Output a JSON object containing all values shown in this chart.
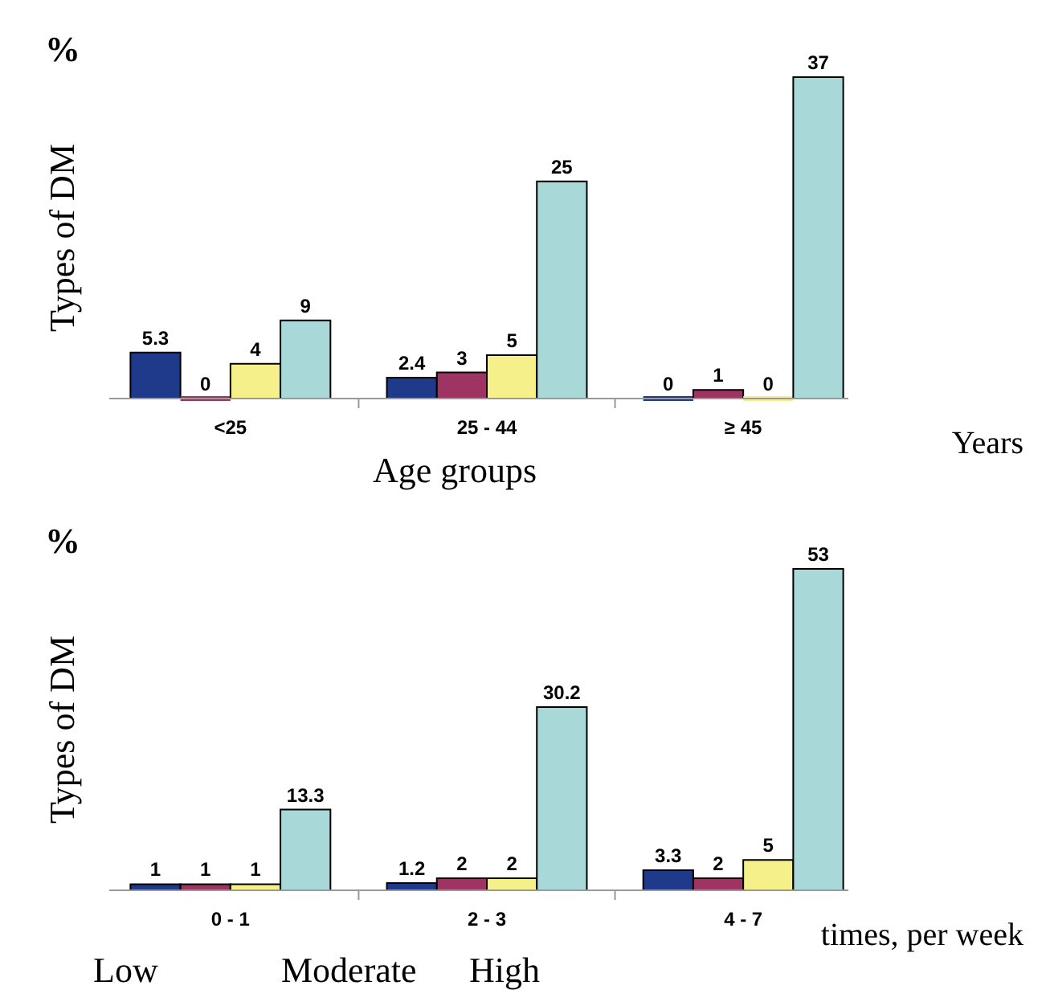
{
  "chart_data": [
    {
      "type": "bar",
      "ylabel": "Types of DM",
      "xlabel": "Age groups",
      "annotations": [
        "%",
        "Years"
      ],
      "categories": [
        "<25",
        "25 - 44",
        "≥ 45"
      ],
      "data_labels": true,
      "series": [
        {
          "color": "#1f3a8a",
          "values": [
            5.3,
            2.4,
            0
          ]
        },
        {
          "color": "#9e3462",
          "values": [
            0,
            3,
            1
          ]
        },
        {
          "color": "#f5f08a",
          "values": [
            4,
            5,
            0
          ]
        },
        {
          "color": "#a9d8d8",
          "values": [
            9,
            25,
            37
          ]
        }
      ]
    },
    {
      "type": "bar",
      "ylabel": "Types of DM",
      "annotations": [
        "%",
        "times, per week",
        "Low",
        "Moderate",
        "High"
      ],
      "categories": [
        "0 - 1",
        "2 - 3",
        "4 - 7"
      ],
      "data_labels": true,
      "series": [
        {
          "color": "#1f3a8a",
          "values": [
            1,
            1.2,
            3.3
          ]
        },
        {
          "color": "#9e3462",
          "values": [
            1,
            2,
            2
          ]
        },
        {
          "color": "#f5f08a",
          "values": [
            1,
            2,
            5
          ]
        },
        {
          "color": "#a9d8d8",
          "values": [
            13.3,
            30.2,
            53
          ]
        }
      ]
    }
  ]
}
